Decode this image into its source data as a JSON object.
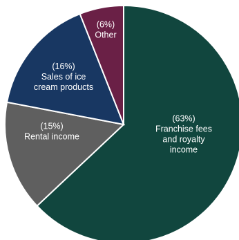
{
  "chart_data": {
    "type": "pie",
    "title": "",
    "slices": [
      {
        "pct_label": "(63%)",
        "lines": [
          "Franchise fees",
          "and royalty",
          "income"
        ],
        "value": 63,
        "color": "#11463e"
      },
      {
        "pct_label": "(15%)",
        "lines": [
          "Rental income"
        ],
        "value": 15,
        "color": "#5f5f5f"
      },
      {
        "pct_label": "(16%)",
        "lines": [
          "Sales of ice",
          "cream products"
        ],
        "value": 16,
        "color": "#183762"
      },
      {
        "pct_label": "(6%)",
        "lines": [
          "Other"
        ],
        "value": 6,
        "color": "#6a2046"
      }
    ]
  }
}
